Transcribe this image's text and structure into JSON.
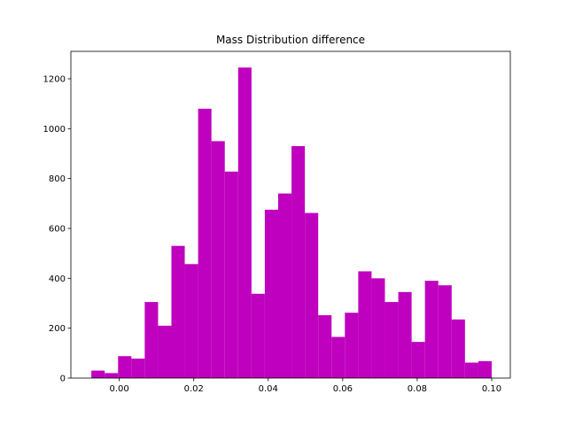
{
  "chart_data": {
    "type": "histogram",
    "title": "Mass Distribution difference",
    "color": "#bf00bf",
    "bins": [
      -0.0075,
      -0.00392,
      -0.00033,
      0.00325,
      0.00683,
      0.01042,
      0.014,
      0.01758,
      0.02117,
      0.02475,
      0.02833,
      0.03192,
      0.0355,
      0.03908,
      0.04267,
      0.04625,
      0.04983,
      0.05342,
      0.057,
      0.06058,
      0.06417,
      0.06775,
      0.07133,
      0.07492,
      0.0785,
      0.08208,
      0.08567,
      0.08925,
      0.09283,
      0.09642,
      0.1
    ],
    "values": [
      30,
      20,
      88,
      78,
      305,
      210,
      530,
      457,
      1080,
      950,
      828,
      1245,
      338,
      675,
      740,
      930,
      662,
      252,
      165,
      262,
      428,
      400,
      305,
      345,
      145,
      390,
      372,
      235,
      62,
      68
    ],
    "xlim": [
      -0.013,
      0.105
    ],
    "xticks": [
      {
        "value": 0,
        "label": "0.00"
      },
      {
        "value": 0.02,
        "label": "0.02"
      },
      {
        "value": 0.04,
        "label": "0.04"
      },
      {
        "value": 0.06,
        "label": "0.06"
      },
      {
        "value": 0.08,
        "label": "0.08"
      },
      {
        "value": 0.1,
        "label": "0.10"
      }
    ],
    "ylim": [
      0,
      1310
    ],
    "yticks": [
      0,
      200,
      400,
      600,
      800,
      1000,
      1200
    ]
  }
}
